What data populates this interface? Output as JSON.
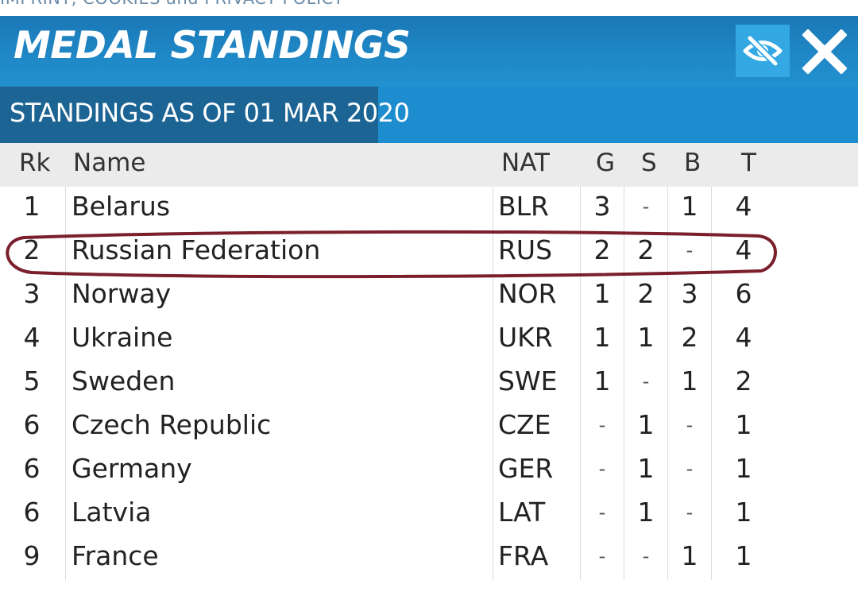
{
  "top_link": "IMPRINT, COOKIES and PRIVACY POLICY",
  "header": {
    "title": "MEDAL STANDINGS",
    "eye_icon": "eye-off-icon",
    "close_icon": "close-icon"
  },
  "subheader": {
    "label": "STANDINGS AS OF 01 MAR 2020"
  },
  "columns": {
    "rk": "Rk",
    "name": "Name",
    "nat": "NAT",
    "g": "G",
    "s": "S",
    "b": "B",
    "t": "T"
  },
  "rows": [
    {
      "rk": "1",
      "name": "Belarus",
      "nat": "BLR",
      "g": "3",
      "s": "-",
      "b": "1",
      "t": "4"
    },
    {
      "rk": "2",
      "name": "Russian Federation",
      "nat": "RUS",
      "g": "2",
      "s": "2",
      "b": "-",
      "t": "4"
    },
    {
      "rk": "3",
      "name": "Norway",
      "nat": "NOR",
      "g": "1",
      "s": "2",
      "b": "3",
      "t": "6"
    },
    {
      "rk": "4",
      "name": "Ukraine",
      "nat": "UKR",
      "g": "1",
      "s": "1",
      "b": "2",
      "t": "4"
    },
    {
      "rk": "5",
      "name": "Sweden",
      "nat": "SWE",
      "g": "1",
      "s": "-",
      "b": "1",
      "t": "2"
    },
    {
      "rk": "6",
      "name": "Czech Republic",
      "nat": "CZE",
      "g": "-",
      "s": "1",
      "b": "-",
      "t": "1"
    },
    {
      "rk": "6",
      "name": "Germany",
      "nat": "GER",
      "g": "-",
      "s": "1",
      "b": "-",
      "t": "1"
    },
    {
      "rk": "6",
      "name": "Latvia",
      "nat": "LAT",
      "g": "-",
      "s": "1",
      "b": "-",
      "t": "1"
    },
    {
      "rk": "9",
      "name": "France",
      "nat": "FRA",
      "g": "-",
      "s": "-",
      "b": "1",
      "t": "1"
    }
  ],
  "colors": {
    "header_blue": "#1f87c5",
    "tab_dark_blue": "#1b6494",
    "highlight_marker": "#7a1f2b"
  }
}
